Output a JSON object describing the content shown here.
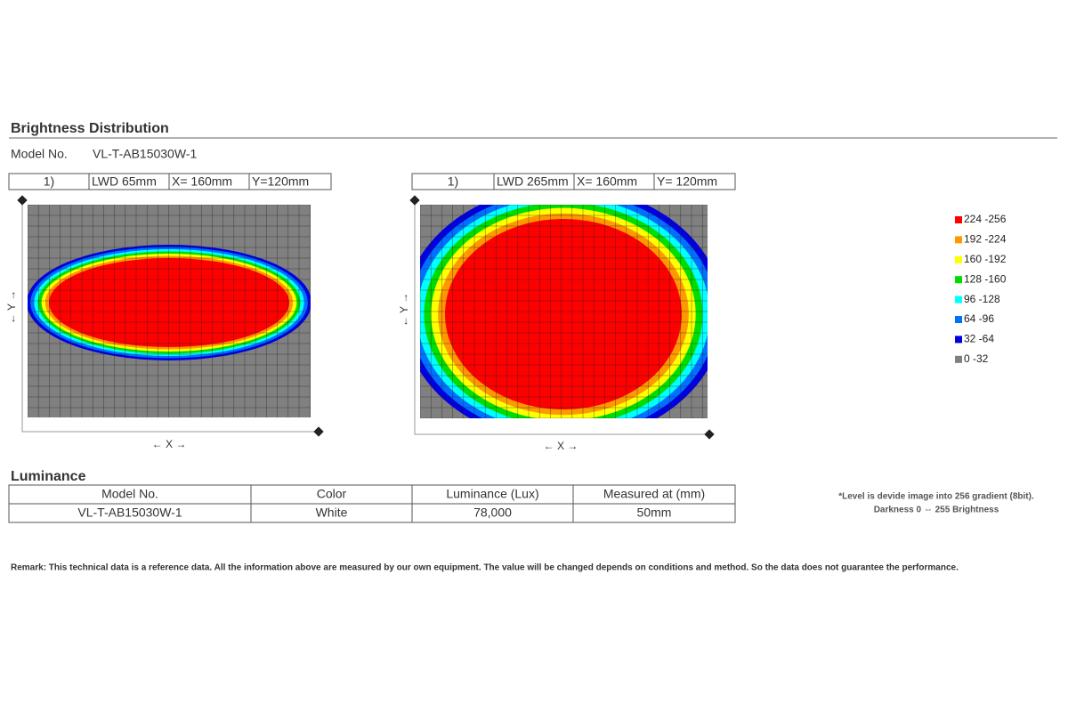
{
  "brightness": {
    "title": "Brightness Distribution",
    "model_label": "Model No.",
    "model_value": "VL-T-AB15030W-1"
  },
  "panels": [
    {
      "header": [
        "1)",
        "LWD 65mm",
        "X= 160mm",
        "Y=120mm"
      ],
      "x_axis": "← X →",
      "y_axis": "← Y →"
    },
    {
      "header": [
        "1)",
        "LWD 265mm",
        "X= 160mm",
        "Y= 120mm"
      ],
      "x_axis": "← X →",
      "y_axis": "← Y →"
    }
  ],
  "legend": [
    {
      "label": "224 -256",
      "color": "#ff0000"
    },
    {
      "label": "192 -224",
      "color": "#ff9900"
    },
    {
      "label": "160 -192",
      "color": "#ffff00"
    },
    {
      "label": "128 -160",
      "color": "#00dd00"
    },
    {
      "label": "96 -128",
      "color": "#00ffff"
    },
    {
      "label": "64 -96",
      "color": "#0070ff"
    },
    {
      "label": "32 -64",
      "color": "#0000e0"
    },
    {
      "label": "0 -32",
      "color": "#808080"
    }
  ],
  "luminance": {
    "title": "Luminance",
    "header": [
      "Model No.",
      "Color",
      "Luminance (Lux)",
      "Measured at (mm)"
    ],
    "rows": [
      [
        "VL-T-AB15030W-1",
        "White",
        "78,000",
        "50mm"
      ]
    ]
  },
  "note": [
    "*Level is devide image into 256 gradient (8bit).",
    "Darkness 0 ⇔ 255 Brightness"
  ],
  "remark": "Remark: This technical data is a reference data. All the information above are measured by our own equipment. The value will be changed depends on conditions and method. So the data does not guarantee the performance."
}
